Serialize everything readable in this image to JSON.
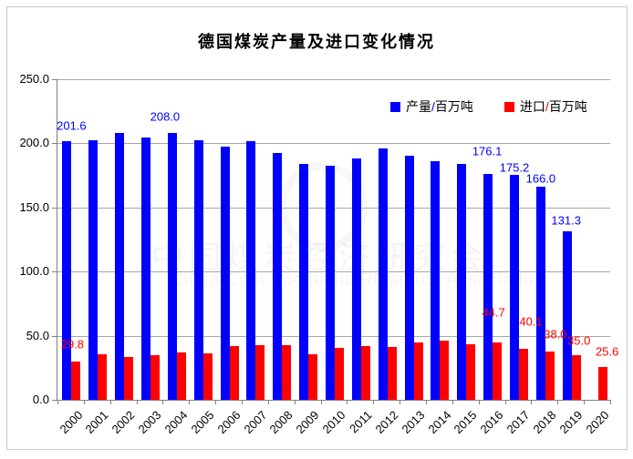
{
  "watermark": {
    "line1": "中国煤炭经济研究会",
    "line2": "China Coal Economic Research Association"
  },
  "chart_data": {
    "type": "bar",
    "title": "德国煤炭产量及进口变化情况",
    "xlabel": "",
    "ylabel": "",
    "ylim": [
      0,
      250
    ],
    "ytick_step": 50,
    "ytick_format": "one-decimal",
    "grid": true,
    "legend_position": "top-right-inside",
    "categories": [
      "2000",
      "2001",
      "2002",
      "2003",
      "2004",
      "2005",
      "2006",
      "2007",
      "2008",
      "2009",
      "2010",
      "2011",
      "2012",
      "2013",
      "2014",
      "2015",
      "2016",
      "2017",
      "2018",
      "2019",
      "2020"
    ],
    "series": [
      {
        "name": "产量/百万吨",
        "color": "#0000ff",
        "points": [
          {
            "x": "2000",
            "v": 201.6,
            "label": "201.6",
            "dx": 5,
            "dy": -17
          },
          {
            "x": "2001",
            "v": 202.8
          },
          {
            "x": "2002",
            "v": 207.9
          },
          {
            "x": "2003",
            "v": 204.8
          },
          {
            "x": "2004",
            "v": 208.0,
            "label": "208.0",
            "dx": -8,
            "dy": -18
          },
          {
            "x": "2005",
            "v": 202.6
          },
          {
            "x": "2006",
            "v": 197.2
          },
          {
            "x": "2007",
            "v": 201.7
          },
          {
            "x": "2008",
            "v": 192.4
          },
          {
            "x": "2009",
            "v": 183.7
          },
          {
            "x": "2010",
            "v": 182.3
          },
          {
            "x": "2011",
            "v": 188.6
          },
          {
            "x": "2012",
            "v": 196.2
          },
          {
            "x": "2013",
            "v": 190.6
          },
          {
            "x": "2014",
            "v": 185.9
          },
          {
            "x": "2015",
            "v": 184.3
          },
          {
            "x": "2016",
            "v": 176.1,
            "label": "176.1",
            "dx": -1,
            "dy": -25
          },
          {
            "x": "2017",
            "v": 175.2,
            "label": "175.2",
            "dx": 0,
            "dy": -8
          },
          {
            "x": "2018",
            "v": 166.0,
            "label": "166.0",
            "dx": 0,
            "dy": -9
          },
          {
            "x": "2019",
            "v": 131.3,
            "label": "131.3",
            "dx": -1,
            "dy": -12
          },
          {
            "x": "2020",
            "v": null
          }
        ]
      },
      {
        "name": "进口/百万吨",
        "color": "#ff0000",
        "points": [
          {
            "x": "2000",
            "v": 29.8,
            "label": "29.8",
            "dx": -4,
            "dy": -19
          },
          {
            "x": "2001",
            "v": 35.9
          },
          {
            "x": "2002",
            "v": 33.2
          },
          {
            "x": "2003",
            "v": 34.9
          },
          {
            "x": "2004",
            "v": 37.1
          },
          {
            "x": "2005",
            "v": 36.4
          },
          {
            "x": "2006",
            "v": 42.2
          },
          {
            "x": "2007",
            "v": 42.8
          },
          {
            "x": "2008",
            "v": 42.5
          },
          {
            "x": "2009",
            "v": 35.9
          },
          {
            "x": "2010",
            "v": 40.4
          },
          {
            "x": "2011",
            "v": 41.6
          },
          {
            "x": "2012",
            "v": 41.1
          },
          {
            "x": "2013",
            "v": 44.5
          },
          {
            "x": "2014",
            "v": 46.2
          },
          {
            "x": "2015",
            "v": 43.5
          },
          {
            "x": "2016",
            "v": 44.7,
            "label": "44.7",
            "dx": -4,
            "dy": -33
          },
          {
            "x": "2017",
            "v": 40.1,
            "label": "40.1",
            "dx": 8,
            "dy": -30
          },
          {
            "x": "2018",
            "v": 38.0,
            "label": "38.0",
            "dx": 6,
            "dy": -19
          },
          {
            "x": "2019",
            "v": 35.0,
            "label": "35.0",
            "dx": 3,
            "dy": -16
          },
          {
            "x": "2020",
            "v": 25.6,
            "label": "25.6",
            "dx": 5,
            "dy": -17
          }
        ]
      }
    ]
  }
}
